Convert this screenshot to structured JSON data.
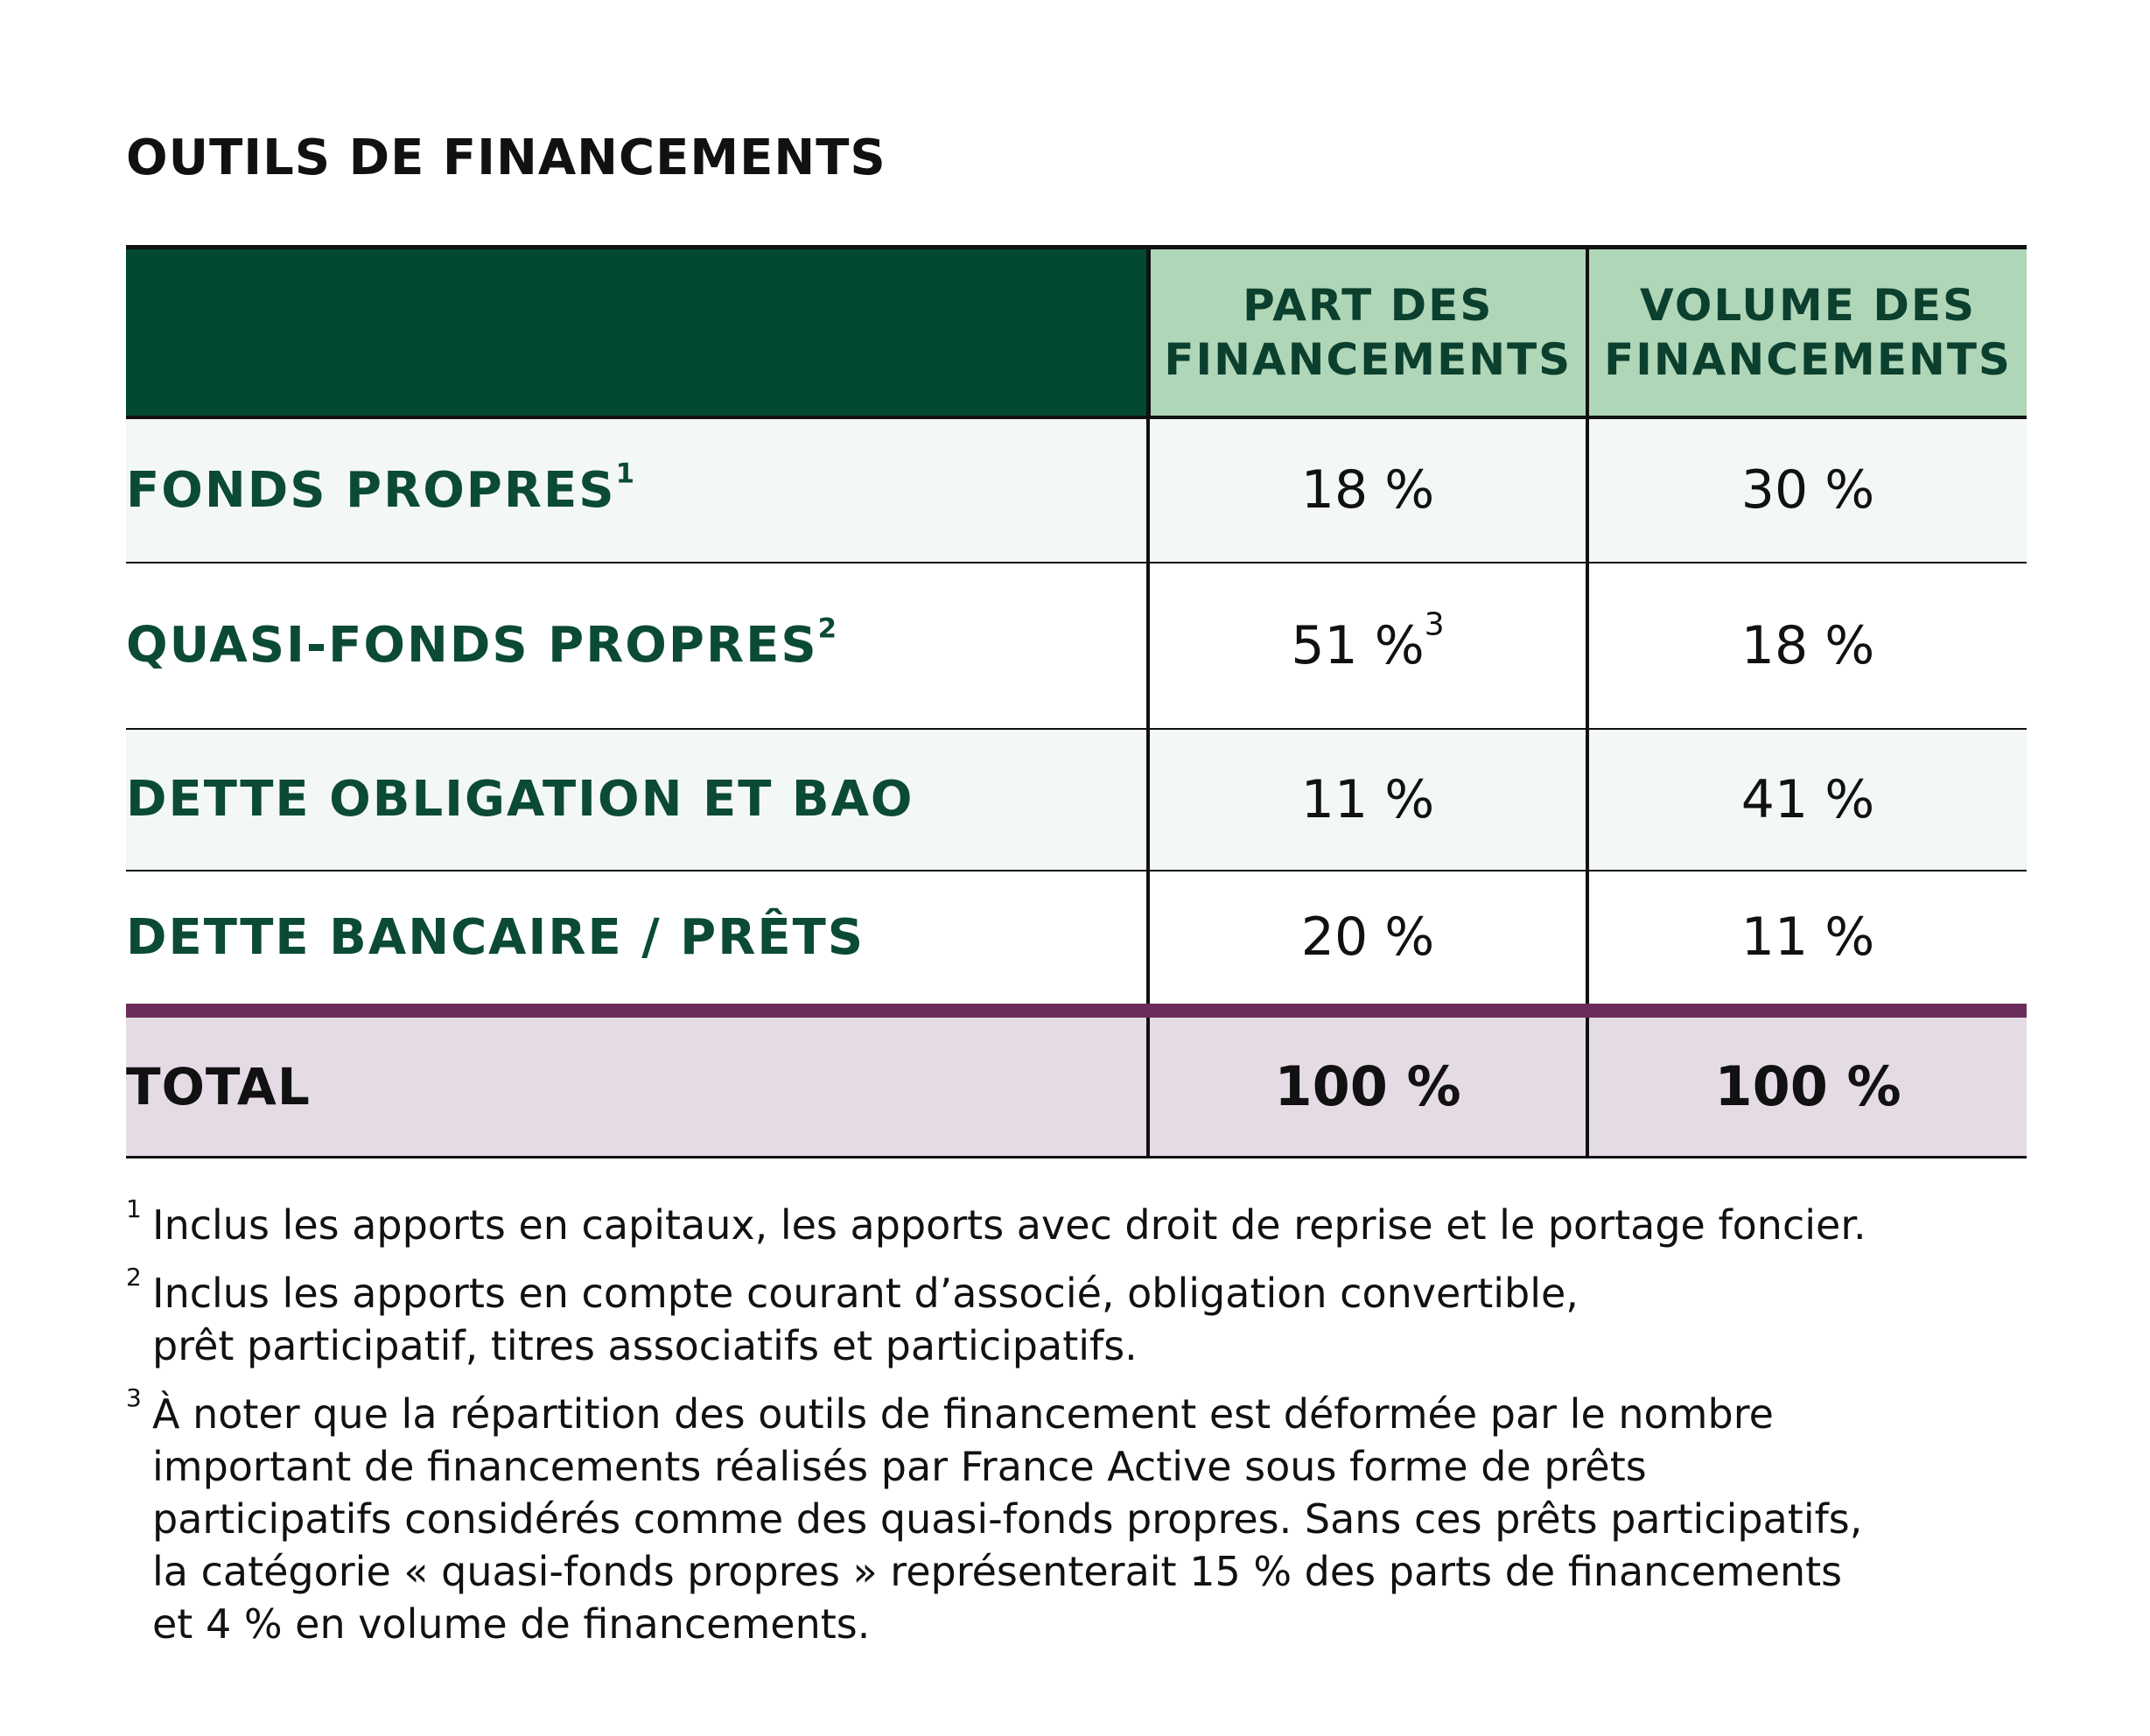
{
  "title": "OUTILS DE FINANCEMENTS",
  "table": {
    "headers": [
      "",
      "PART DES\nFINANCEMENTS",
      "VOLUME DES\nFINANCEMENTS"
    ],
    "rows": [
      {
        "label": "FONDS PROPRES",
        "label_note": "1",
        "part": "18 %",
        "part_note": "",
        "volume": "30 %"
      },
      {
        "label": "QUASI-FONDS PROPRES",
        "label_note": "2",
        "part": "51 %",
        "part_note": "3",
        "volume": "18 %"
      },
      {
        "label": "DETTE OBLIGATION ET BAO",
        "label_note": "",
        "part": "11 %",
        "part_note": "",
        "volume": "41 %"
      },
      {
        "label": "DETTE BANCAIRE / PRÊTS",
        "label_note": "",
        "part": "20 %",
        "part_note": "",
        "volume": "11 %"
      }
    ],
    "total": {
      "label": "TOTAL",
      "part": "100 %",
      "volume": "100 %"
    }
  },
  "footnotes": [
    {
      "num": "1",
      "lines": [
        "Inclus les apports en capitaux, les apports avec droit de reprise et le portage foncier."
      ]
    },
    {
      "num": "2",
      "lines": [
        "Inclus les apports en compte courant d’associé, obligation convertible,",
        "prêt participatif, titres associatifs et participatifs."
      ]
    },
    {
      "num": "3",
      "lines": [
        "À noter que la répartition des outils de financement est déformée par le nombre",
        "important de financements réalisés par France Active sous forme de prêts",
        "participatifs considérés comme des quasi-fonds propres. Sans ces prêts participatifs,",
        "la catégorie « quasi-fonds propres » représenterait 15 % des parts de financements",
        "et 4 % en volume de financements."
      ]
    }
  ],
  "colors": {
    "header_dark": "#024832",
    "header_light": "#b0d6b8",
    "row_tint": "#f3f8f4",
    "label_text": "#0b4a35",
    "total_bar": "#6c2c5c",
    "total_bg": "#e5dbe5"
  }
}
